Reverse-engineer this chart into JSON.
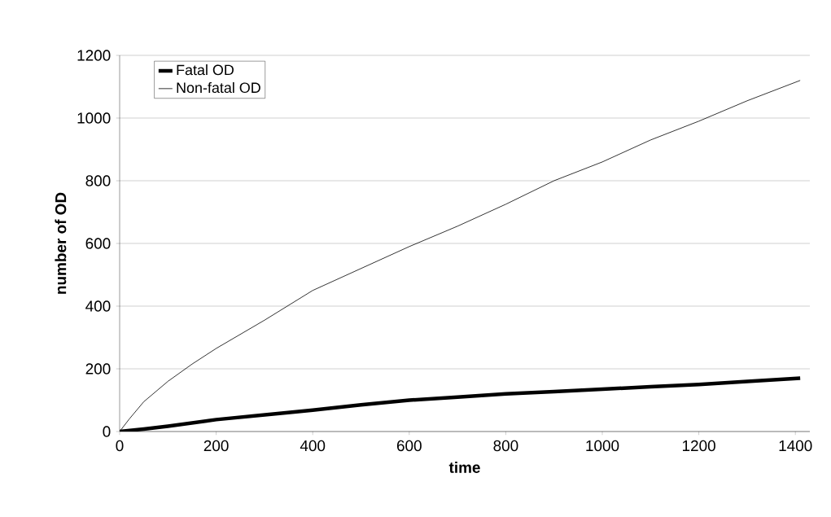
{
  "chart_data": {
    "type": "line",
    "xlabel": "time",
    "ylabel": "number of OD",
    "xlim": [
      0,
      1430
    ],
    "ylim": [
      0,
      1200
    ],
    "xticks": [
      0,
      200,
      400,
      600,
      800,
      1000,
      1200,
      1400
    ],
    "yticks": [
      0,
      200,
      400,
      600,
      800,
      1000,
      1200
    ],
    "grid": "y",
    "legend": "top left",
    "marker": "none",
    "line_style": "solid",
    "series": [
      {
        "name": "Fatal OD",
        "color": "#000000",
        "x": [
          0,
          50,
          100,
          200,
          300,
          400,
          500,
          600,
          700,
          800,
          900,
          1000,
          1100,
          1200,
          1300,
          1410
        ],
        "values": [
          0,
          8,
          17,
          38,
          53,
          68,
          85,
          100,
          110,
          120,
          127,
          135,
          143,
          150,
          160,
          170
        ]
      },
      {
        "name": "Non-fatal OD",
        "color": "#000000",
        "x": [
          0,
          20,
          50,
          100,
          150,
          200,
          300,
          400,
          500,
          600,
          700,
          800,
          900,
          1000,
          1100,
          1200,
          1300,
          1410
        ],
        "values": [
          0,
          40,
          95,
          160,
          215,
          265,
          355,
          450,
          520,
          590,
          655,
          725,
          800,
          860,
          930,
          990,
          1055,
          1120
        ]
      }
    ]
  }
}
